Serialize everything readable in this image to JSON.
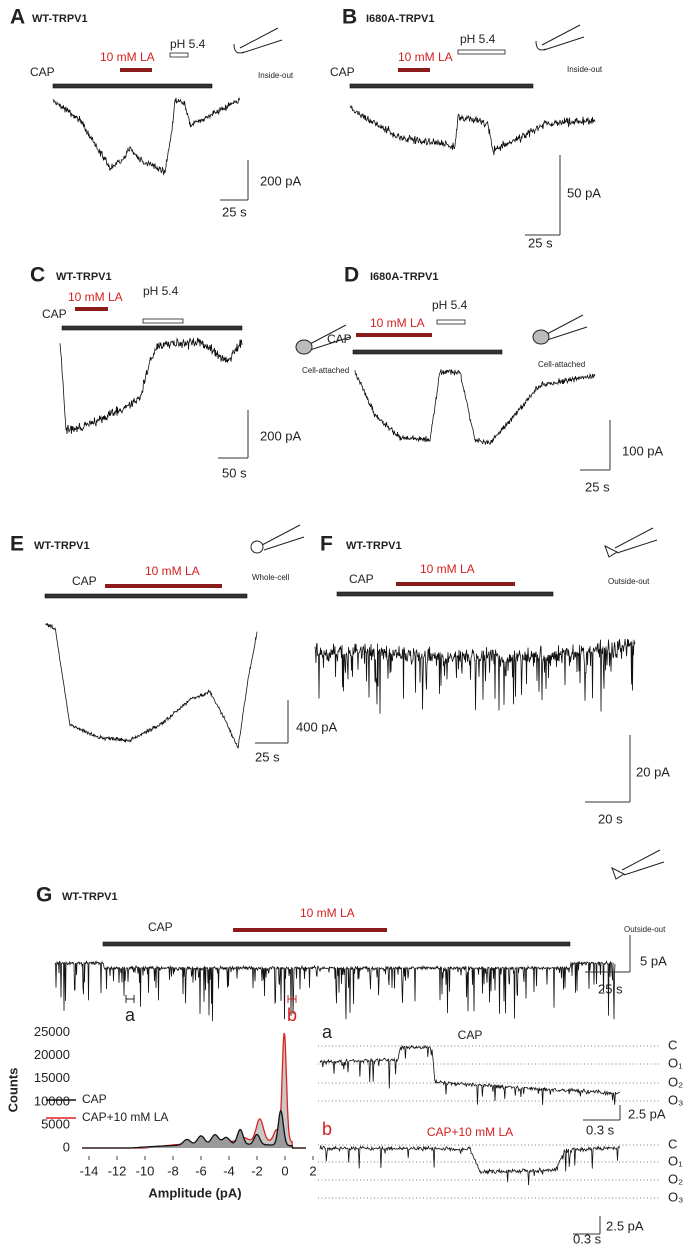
{
  "panels": [
    {
      "letter": "A",
      "construct": "WT-TRPV1",
      "cap": "CAP",
      "la": "10 mM LA",
      "ph": "pH 5.4",
      "config": "Inside-out",
      "scale_y": "200 pA",
      "scale_x": "25 s"
    },
    {
      "letter": "B",
      "construct": "I680A-TRPV1",
      "cap": "CAP",
      "la": "10 mM LA",
      "ph": "pH 5.4",
      "config": "Inside-out",
      "scale_y": "50 pA",
      "scale_x": "25 s"
    },
    {
      "letter": "C",
      "construct": "WT-TRPV1",
      "cap": "CAP",
      "la": "10 mM LA",
      "ph": "pH 5.4",
      "config": "Cell-attached",
      "scale_y": "200 pA",
      "scale_x": "50 s"
    },
    {
      "letter": "D",
      "construct": "I680A-TRPV1",
      "cap": "CAP",
      "la": "10 mM LA",
      "ph": "pH 5.4",
      "config": "Cell-attached",
      "scale_y": "100 pA",
      "scale_x": "25 s"
    },
    {
      "letter": "E",
      "construct": "WT-TRPV1",
      "cap": "CAP",
      "la": "10 mM LA",
      "config": "Whole-cell",
      "scale_y": "400 pA",
      "scale_x": "25 s"
    },
    {
      "letter": "F",
      "construct": "WT-TRPV1",
      "cap": "CAP",
      "la": "10 mM LA",
      "config": "Outside-out",
      "scale_y": "20 pA",
      "scale_x": "20 s"
    },
    {
      "letter": "G",
      "construct": "WT-TRPV1",
      "cap": "CAP",
      "la": "10 mM LA",
      "config": "Outside-out",
      "scale_y": "5 pA",
      "scale_x": "25 s",
      "markers": [
        "a",
        "b"
      ]
    }
  ],
  "histogram": {
    "ylabel": "Counts",
    "xlabel": "Amplitude (pA)",
    "xlim": [
      -15,
      2
    ],
    "ylim": [
      0,
      26000
    ],
    "xticks": [
      -14,
      -12,
      -10,
      -8,
      -6,
      -4,
      -2,
      0,
      2
    ],
    "yticks": [
      0,
      5000,
      10000,
      15000,
      20000,
      25000
    ],
    "legend": [
      {
        "name": "CAP",
        "color": "#111111"
      },
      {
        "name": "CAP+10 mM LA",
        "color": "#e02020"
      }
    ]
  },
  "insets": [
    {
      "letter": "a",
      "title": "CAP",
      "levels": [
        "C",
        "O₁",
        "O₂",
        "O₃"
      ],
      "scale_y": "2.5 pA",
      "scale_x": "0.3 s"
    },
    {
      "letter": "b",
      "title": "CAP+10 mM LA",
      "levels": [
        "C",
        "O₁",
        "O₂",
        "O₃"
      ],
      "scale_y": "2.5 pA",
      "scale_x": "0.3 s"
    }
  ]
}
